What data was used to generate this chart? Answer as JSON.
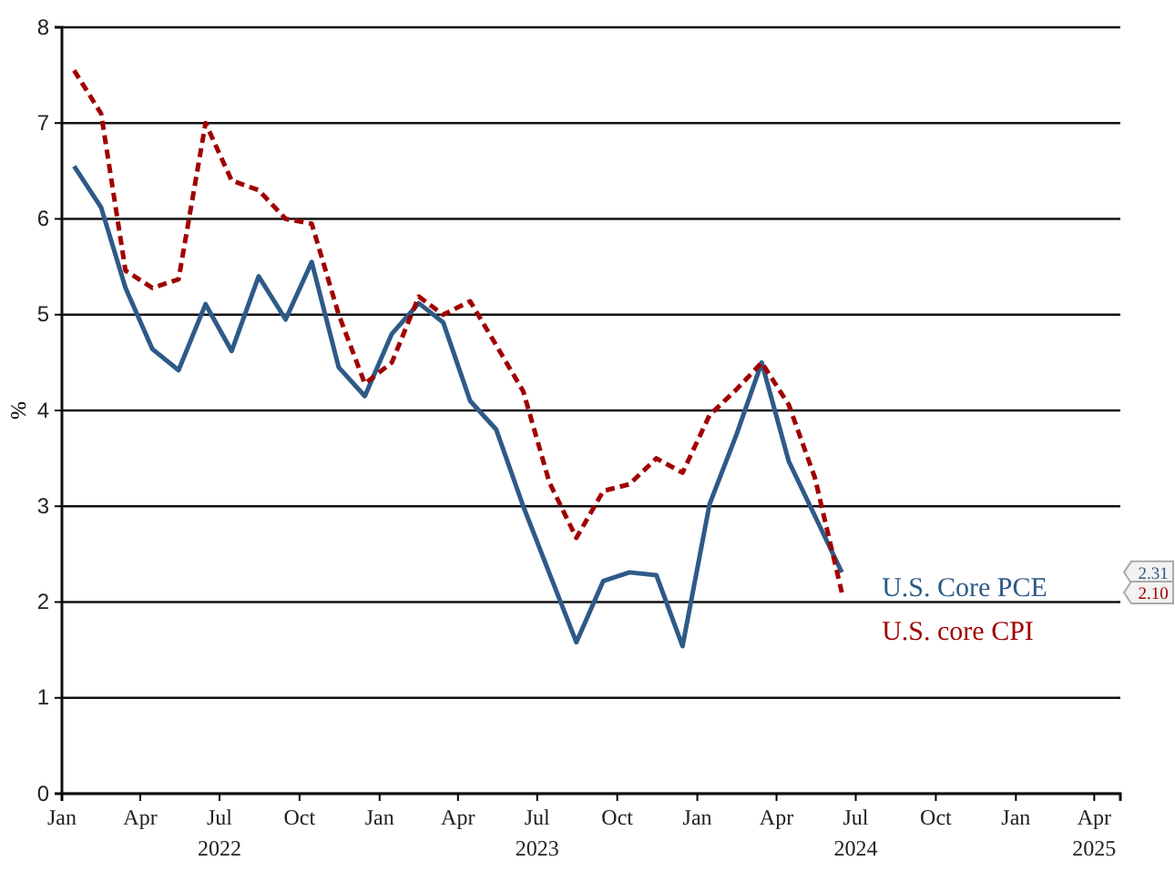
{
  "chart_data": {
    "type": "line",
    "ylabel": "%",
    "x": [
      "2022-01-15",
      "2022-02-15",
      "2022-03-15",
      "2022-04-15",
      "2022-05-15",
      "2022-06-15",
      "2022-07-15",
      "2022-08-15",
      "2022-09-15",
      "2022-10-15",
      "2022-11-15",
      "2022-12-15",
      "2023-01-15",
      "2023-02-15",
      "2023-03-15",
      "2023-04-15",
      "2023-05-15",
      "2023-06-15",
      "2023-07-15",
      "2023-08-15",
      "2023-09-15",
      "2023-10-15",
      "2023-11-15",
      "2023-12-15",
      "2024-01-15",
      "2024-02-15",
      "2024-03-15",
      "2024-04-15",
      "2024-05-15",
      "2024-06-15"
    ],
    "series": [
      {
        "name": "U.S. Core PCE",
        "color": "#2e5a87",
        "line_style": "solid",
        "values": [
          6.55,
          6.12,
          5.28,
          4.64,
          4.42,
          5.11,
          4.62,
          5.4,
          4.95,
          5.55,
          4.45,
          4.15,
          4.8,
          5.12,
          4.92,
          4.1,
          3.8,
          3.0,
          2.3,
          1.58,
          2.22,
          2.31,
          2.28,
          1.54,
          3.02,
          3.75,
          4.5,
          3.47,
          2.9,
          2.31
        ]
      },
      {
        "name": "U.S. core CPI",
        "color": "#a00000",
        "line_style": "dashed",
        "values": [
          7.55,
          7.1,
          5.46,
          5.28,
          5.37,
          7.0,
          6.4,
          6.3,
          6.0,
          5.95,
          5.0,
          4.28,
          4.5,
          5.19,
          5.0,
          5.14,
          4.68,
          4.2,
          3.25,
          2.67,
          3.16,
          3.23,
          3.5,
          3.35,
          3.95,
          4.22,
          4.5,
          4.06,
          3.3,
          2.1
        ]
      }
    ],
    "xlim": [
      "2022-01-01",
      "2025-05-01"
    ],
    "xticks": [
      {
        "value": "2022-01-01",
        "label": "Jan"
      },
      {
        "value": "2022-04-01",
        "label": "Apr"
      },
      {
        "value": "2022-07-01",
        "label": "Jul\n2022"
      },
      {
        "value": "2022-10-01",
        "label": "Oct"
      },
      {
        "value": "2023-01-01",
        "label": "Jan"
      },
      {
        "value": "2023-04-01",
        "label": "Apr"
      },
      {
        "value": "2023-07-01",
        "label": "Jul\n2023"
      },
      {
        "value": "2023-10-01",
        "label": "Oct"
      },
      {
        "value": "2024-01-01",
        "label": "Jan"
      },
      {
        "value": "2024-04-01",
        "label": "Apr"
      },
      {
        "value": "2024-07-01",
        "label": "Jul\n2024"
      },
      {
        "value": "2024-10-01",
        "label": "Oct"
      },
      {
        "value": "2025-01-01",
        "label": "Jan"
      },
      {
        "value": "2025-04-01",
        "label": "Apr\n2025"
      }
    ],
    "ylim": [
      0,
      8
    ],
    "yticks": [
      0,
      1,
      2,
      3,
      4,
      5,
      6,
      7,
      8
    ],
    "grid": "y",
    "marker": "none",
    "y2lim": [
      0,
      8
    ],
    "y2ticks": [
      {
        "value": 2.31,
        "label": "2.31"
      },
      {
        "value": 2.1,
        "label": "2.10"
      }
    ]
  }
}
